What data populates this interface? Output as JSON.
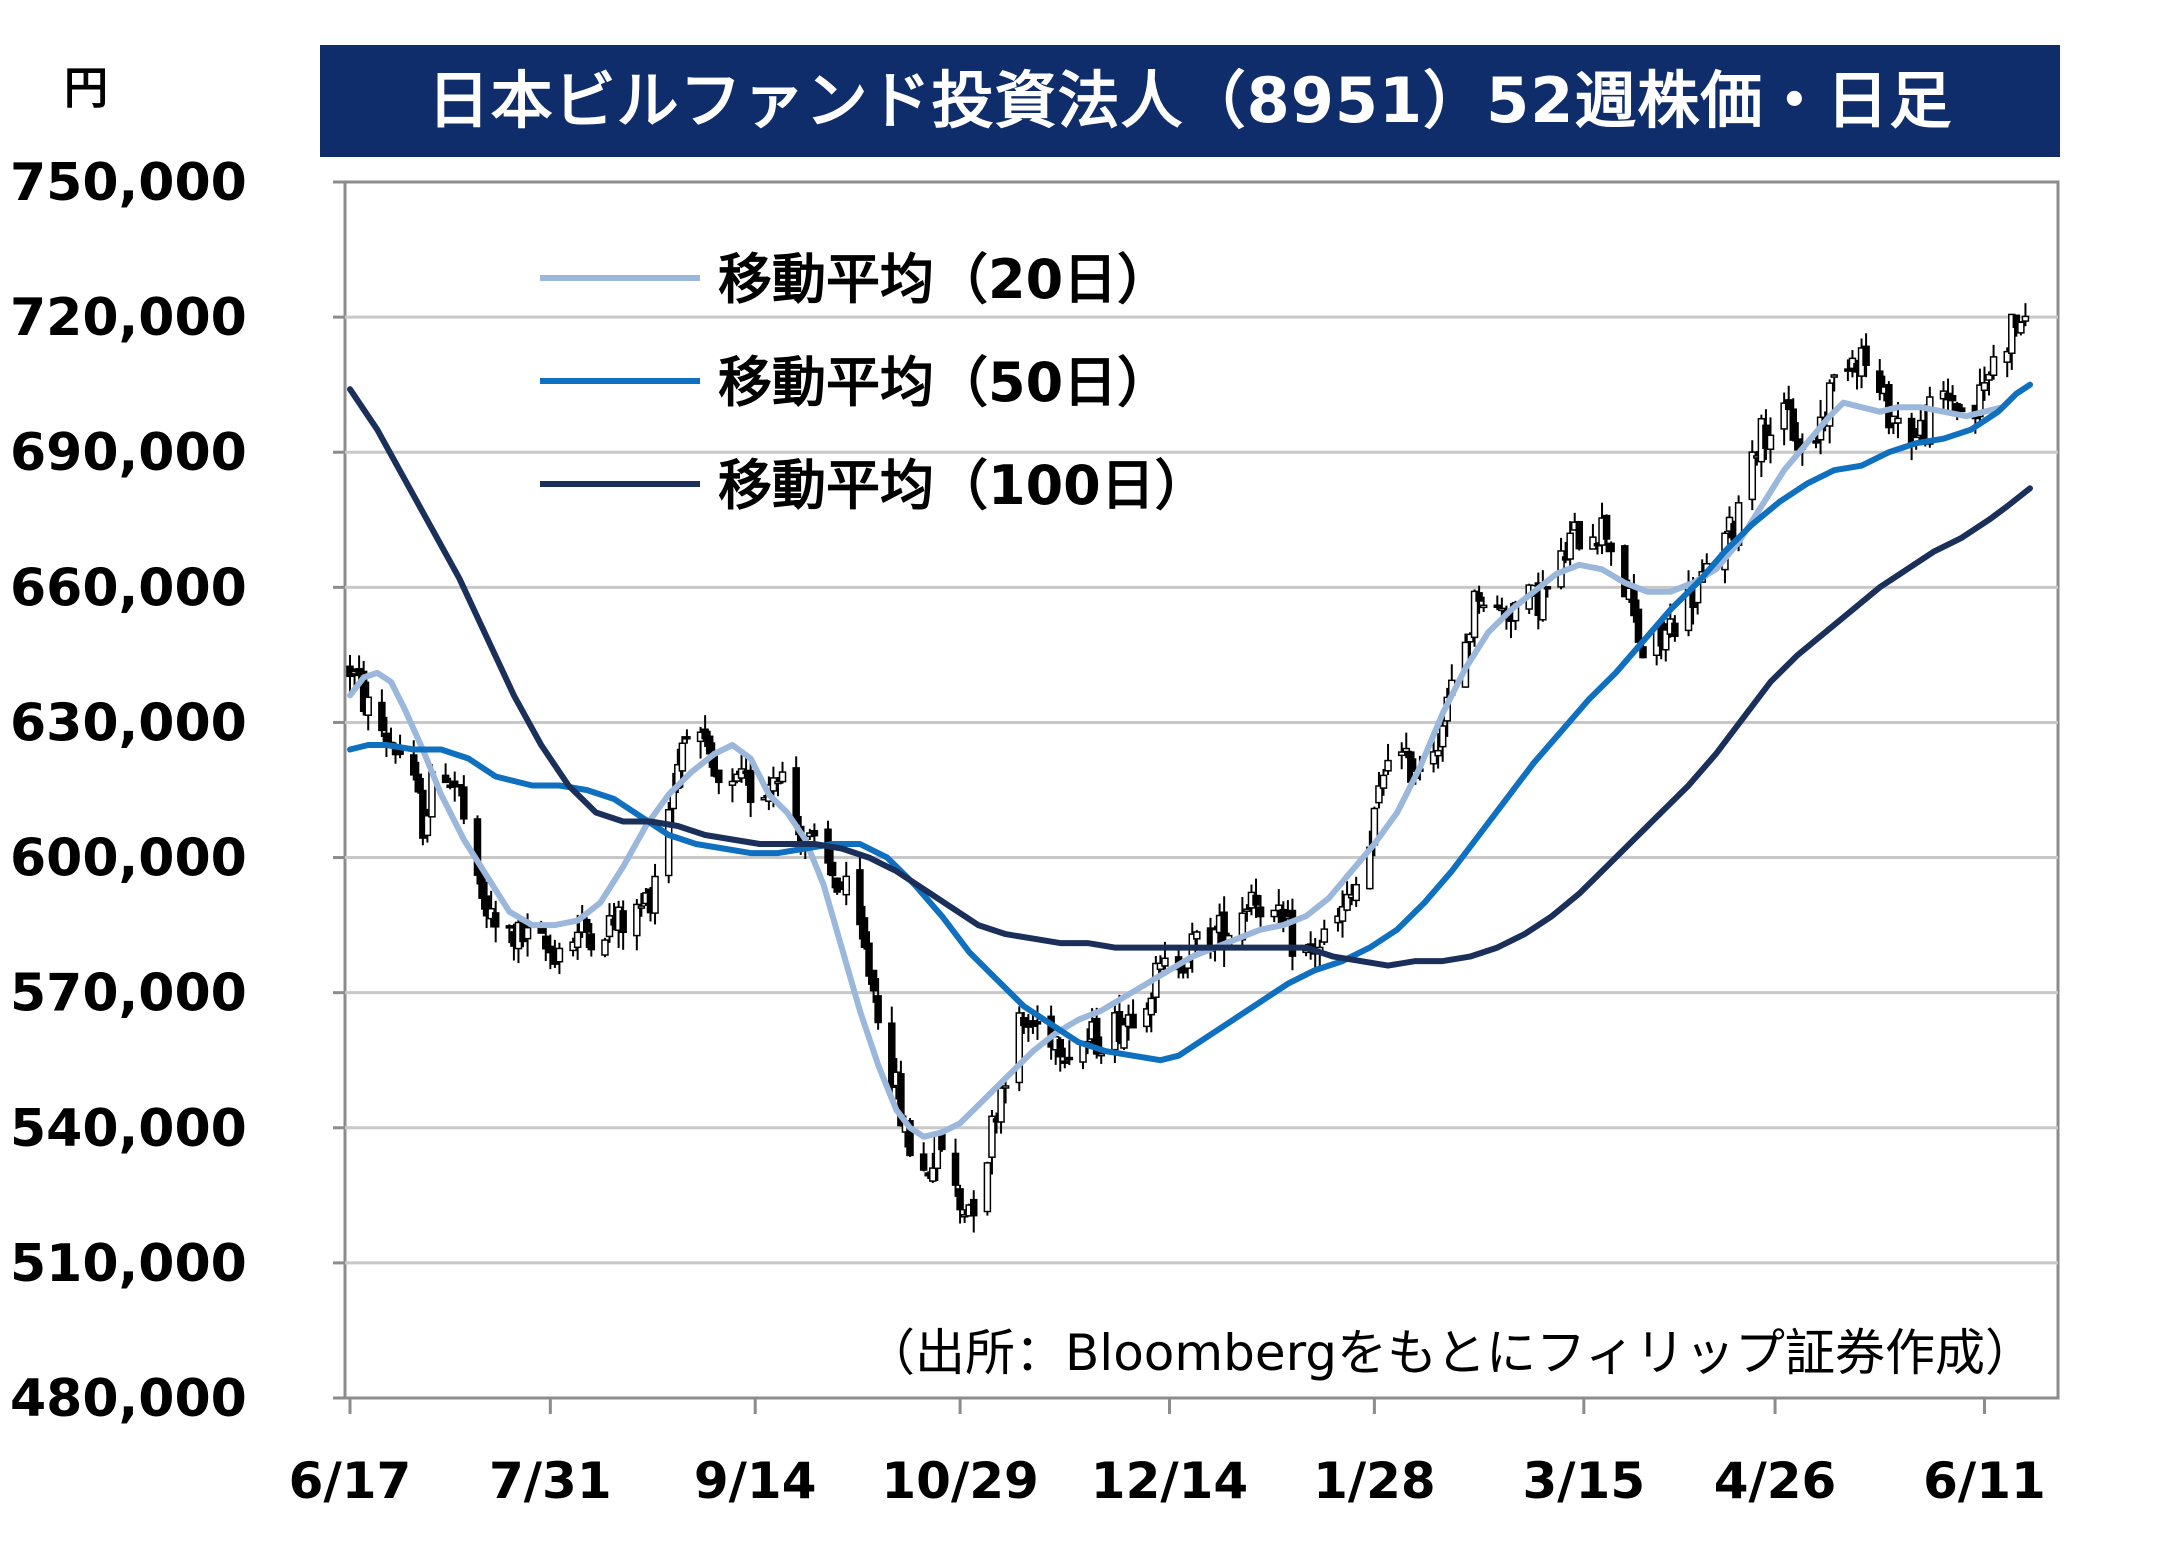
{
  "chart_data": {
    "type": "candlestick",
    "title": "日本ビルファンド投資法人（8951）52週株価・日足",
    "y_unit": "円",
    "ylim": [
      480000,
      750000
    ],
    "y_ticks": [
      {
        "value": 750000,
        "label": "750,000"
      },
      {
        "value": 720000,
        "label": "720,000"
      },
      {
        "value": 690000,
        "label": "690,000"
      },
      {
        "value": 660000,
        "label": "660,000"
      },
      {
        "value": 630000,
        "label": "630,000"
      },
      {
        "value": 600000,
        "label": "600,000"
      },
      {
        "value": 570000,
        "label": "570,000"
      },
      {
        "value": 540000,
        "label": "540,000"
      },
      {
        "value": 510000,
        "label": "510,000"
      },
      {
        "value": 480000,
        "label": "480,000"
      }
    ],
    "x_ticks": [
      {
        "t": 0,
        "label": "6/17"
      },
      {
        "t": 44,
        "label": "7/31"
      },
      {
        "t": 89,
        "label": "9/14"
      },
      {
        "t": 134,
        "label": "10/29"
      },
      {
        "t": 180,
        "label": "12/14"
      },
      {
        "t": 225,
        "label": "1/28"
      },
      {
        "t": 271,
        "label": "3/15"
      },
      {
        "t": 313,
        "label": "4/26"
      },
      {
        "t": 359,
        "label": "6/11"
      }
    ],
    "grid": true,
    "legend_position": "top-left",
    "source_note": "（出所：Bloombergをもとにフィリップ証券作成）",
    "price_path": [
      [
        0,
        642000
      ],
      [
        4,
        633000
      ],
      [
        8,
        627000
      ],
      [
        12,
        622000
      ],
      [
        16,
        608000
      ],
      [
        20,
        622000
      ],
      [
        24,
        614000
      ],
      [
        28,
        592000
      ],
      [
        32,
        584000
      ],
      [
        38,
        582000
      ],
      [
        44,
        579000
      ],
      [
        50,
        583000
      ],
      [
        56,
        585000
      ],
      [
        62,
        586000
      ],
      [
        66,
        592000
      ],
      [
        70,
        612000
      ],
      [
        74,
        631000
      ],
      [
        78,
        622000
      ],
      [
        82,
        612000
      ],
      [
        86,
        616000
      ],
      [
        90,
        614000
      ],
      [
        94,
        621000
      ],
      [
        98,
        608000
      ],
      [
        102,
        601000
      ],
      [
        106,
        596000
      ],
      [
        110,
        590000
      ],
      [
        114,
        575000
      ],
      [
        118,
        558000
      ],
      [
        122,
        538000
      ],
      [
        126,
        530000
      ],
      [
        130,
        536000
      ],
      [
        134,
        522000
      ],
      [
        138,
        525000
      ],
      [
        142,
        545000
      ],
      [
        146,
        562000
      ],
      [
        152,
        563000
      ],
      [
        158,
        558000
      ],
      [
        164,
        560000
      ],
      [
        170,
        564000
      ],
      [
        176,
        572000
      ],
      [
        182,
        578000
      ],
      [
        188,
        582000
      ],
      [
        194,
        585000
      ],
      [
        198,
        593000
      ],
      [
        204,
        585000
      ],
      [
        210,
        578000
      ],
      [
        216,
        584000
      ],
      [
        220,
        591000
      ],
      [
        224,
        602000
      ],
      [
        228,
        625000
      ],
      [
        232,
        620000
      ],
      [
        236,
        622000
      ],
      [
        240,
        630000
      ],
      [
        244,
        644000
      ],
      [
        248,
        660000
      ],
      [
        252,
        654000
      ],
      [
        256,
        656000
      ],
      [
        260,
        657000
      ],
      [
        264,
        660000
      ],
      [
        268,
        670000
      ],
      [
        272,
        674000
      ],
      [
        276,
        673000
      ],
      [
        280,
        660000
      ],
      [
        284,
        645000
      ],
      [
        288,
        648000
      ],
      [
        292,
        655000
      ],
      [
        296,
        660000
      ],
      [
        300,
        665000
      ],
      [
        304,
        674000
      ],
      [
        308,
        692000
      ],
      [
        312,
        696000
      ],
      [
        316,
        697000
      ],
      [
        320,
        688000
      ],
      [
        324,
        700000
      ],
      [
        328,
        712000
      ],
      [
        332,
        712000
      ],
      [
        336,
        702000
      ],
      [
        340,
        697000
      ],
      [
        344,
        693000
      ],
      [
        348,
        700000
      ],
      [
        352,
        702000
      ],
      [
        356,
        696000
      ],
      [
        360,
        708000
      ],
      [
        364,
        716000
      ],
      [
        367,
        720000
      ],
      [
        369,
        712000
      ]
    ],
    "series": [
      {
        "name": "移動平均（20日）",
        "color": "#9bb7dc",
        "points": [
          [
            0,
            636000
          ],
          [
            3,
            640000
          ],
          [
            6,
            641000
          ],
          [
            9,
            639000
          ],
          [
            12,
            633000
          ],
          [
            16,
            624000
          ],
          [
            20,
            614000
          ],
          [
            25,
            604000
          ],
          [
            30,
            596000
          ],
          [
            35,
            588000
          ],
          [
            40,
            585000
          ],
          [
            45,
            585000
          ],
          [
            50,
            586000
          ],
          [
            55,
            590000
          ],
          [
            60,
            598000
          ],
          [
            65,
            607000
          ],
          [
            70,
            614000
          ],
          [
            75,
            619000
          ],
          [
            80,
            623000
          ],
          [
            84,
            625000
          ],
          [
            88,
            622000
          ],
          [
            92,
            614000
          ],
          [
            96,
            610000
          ],
          [
            100,
            604000
          ],
          [
            104,
            594000
          ],
          [
            108,
            580000
          ],
          [
            112,
            566000
          ],
          [
            116,
            554000
          ],
          [
            120,
            544000
          ],
          [
            123,
            540000
          ],
          [
            126,
            538000
          ],
          [
            130,
            539000
          ],
          [
            134,
            541000
          ],
          [
            138,
            545000
          ],
          [
            142,
            549000
          ],
          [
            146,
            553000
          ],
          [
            150,
            557000
          ],
          [
            155,
            561000
          ],
          [
            160,
            564000
          ],
          [
            165,
            566000
          ],
          [
            170,
            569000
          ],
          [
            175,
            572000
          ],
          [
            180,
            575000
          ],
          [
            185,
            578000
          ],
          [
            190,
            580000
          ],
          [
            195,
            582000
          ],
          [
            200,
            584000
          ],
          [
            205,
            585000
          ],
          [
            210,
            587000
          ],
          [
            215,
            591000
          ],
          [
            220,
            597000
          ],
          [
            225,
            603000
          ],
          [
            230,
            610000
          ],
          [
            235,
            620000
          ],
          [
            240,
            632000
          ],
          [
            245,
            642000
          ],
          [
            250,
            650000
          ],
          [
            255,
            655000
          ],
          [
            260,
            659000
          ],
          [
            265,
            663000
          ],
          [
            270,
            665000
          ],
          [
            275,
            664000
          ],
          [
            280,
            661000
          ],
          [
            285,
            659000
          ],
          [
            290,
            659000
          ],
          [
            295,
            661000
          ],
          [
            300,
            664000
          ],
          [
            305,
            670000
          ],
          [
            310,
            678000
          ],
          [
            315,
            686000
          ],
          [
            320,
            692000
          ],
          [
            325,
            698000
          ],
          [
            328,
            701000
          ],
          [
            332,
            700000
          ],
          [
            336,
            699000
          ],
          [
            340,
            700000
          ],
          [
            345,
            700000
          ],
          [
            350,
            699000
          ],
          [
            355,
            698000
          ],
          [
            359,
            699000
          ],
          [
            363,
            700000
          ],
          [
            366,
            703000
          ],
          [
            369,
            705000
          ]
        ]
      },
      {
        "name": "移動平均（50日）",
        "color": "#1070c0",
        "points": [
          [
            0,
            624000
          ],
          [
            4,
            625000
          ],
          [
            8,
            625000
          ],
          [
            14,
            624000
          ],
          [
            20,
            624000
          ],
          [
            26,
            622000
          ],
          [
            32,
            618000
          ],
          [
            40,
            616000
          ],
          [
            46,
            616000
          ],
          [
            52,
            615000
          ],
          [
            58,
            613000
          ],
          [
            64,
            609000
          ],
          [
            70,
            605000
          ],
          [
            76,
            603000
          ],
          [
            82,
            602000
          ],
          [
            88,
            601000
          ],
          [
            94,
            601000
          ],
          [
            100,
            602000
          ],
          [
            106,
            603000
          ],
          [
            112,
            603000
          ],
          [
            118,
            600000
          ],
          [
            124,
            594000
          ],
          [
            130,
            587000
          ],
          [
            136,
            579000
          ],
          [
            142,
            573000
          ],
          [
            148,
            567000
          ],
          [
            154,
            563000
          ],
          [
            160,
            559000
          ],
          [
            166,
            557000
          ],
          [
            172,
            556000
          ],
          [
            178,
            555000
          ],
          [
            182,
            556000
          ],
          [
            188,
            560000
          ],
          [
            194,
            564000
          ],
          [
            200,
            568000
          ],
          [
            206,
            572000
          ],
          [
            212,
            575000
          ],
          [
            218,
            577000
          ],
          [
            224,
            580000
          ],
          [
            230,
            584000
          ],
          [
            236,
            590000
          ],
          [
            242,
            597000
          ],
          [
            248,
            605000
          ],
          [
            254,
            613000
          ],
          [
            260,
            621000
          ],
          [
            266,
            628000
          ],
          [
            272,
            635000
          ],
          [
            278,
            641000
          ],
          [
            284,
            648000
          ],
          [
            290,
            655000
          ],
          [
            296,
            661000
          ],
          [
            302,
            668000
          ],
          [
            308,
            674000
          ],
          [
            314,
            679000
          ],
          [
            320,
            683000
          ],
          [
            326,
            686000
          ],
          [
            332,
            687000
          ],
          [
            338,
            690000
          ],
          [
            344,
            692000
          ],
          [
            350,
            693000
          ],
          [
            356,
            695000
          ],
          [
            362,
            699000
          ],
          [
            366,
            703000
          ],
          [
            369,
            705000
          ]
        ]
      },
      {
        "name": "移動平均（100日）",
        "color": "#1a2f5a",
        "points": [
          [
            0,
            704000
          ],
          [
            6,
            695000
          ],
          [
            12,
            684000
          ],
          [
            18,
            673000
          ],
          [
            24,
            662000
          ],
          [
            30,
            649000
          ],
          [
            36,
            636000
          ],
          [
            42,
            625000
          ],
          [
            48,
            616000
          ],
          [
            54,
            610000
          ],
          [
            60,
            608000
          ],
          [
            66,
            608000
          ],
          [
            72,
            607000
          ],
          [
            78,
            605000
          ],
          [
            84,
            604000
          ],
          [
            90,
            603000
          ],
          [
            96,
            603000
          ],
          [
            102,
            603000
          ],
          [
            108,
            602000
          ],
          [
            114,
            600000
          ],
          [
            120,
            597000
          ],
          [
            126,
            593000
          ],
          [
            132,
            589000
          ],
          [
            138,
            585000
          ],
          [
            144,
            583000
          ],
          [
            150,
            582000
          ],
          [
            156,
            581000
          ],
          [
            162,
            581000
          ],
          [
            168,
            580000
          ],
          [
            174,
            580000
          ],
          [
            180,
            580000
          ],
          [
            186,
            580000
          ],
          [
            192,
            580000
          ],
          [
            198,
            580000
          ],
          [
            204,
            580000
          ],
          [
            210,
            580000
          ],
          [
            216,
            578000
          ],
          [
            222,
            577000
          ],
          [
            228,
            576000
          ],
          [
            234,
            577000
          ],
          [
            240,
            577000
          ],
          [
            246,
            578000
          ],
          [
            252,
            580000
          ],
          [
            258,
            583000
          ],
          [
            264,
            587000
          ],
          [
            270,
            592000
          ],
          [
            276,
            598000
          ],
          [
            282,
            604000
          ],
          [
            288,
            610000
          ],
          [
            294,
            616000
          ],
          [
            300,
            623000
          ],
          [
            306,
            631000
          ],
          [
            312,
            639000
          ],
          [
            318,
            645000
          ],
          [
            324,
            650000
          ],
          [
            330,
            655000
          ],
          [
            336,
            660000
          ],
          [
            342,
            664000
          ],
          [
            348,
            668000
          ],
          [
            354,
            671000
          ],
          [
            360,
            675000
          ],
          [
            364,
            678000
          ],
          [
            369,
            682000
          ]
        ]
      }
    ]
  }
}
